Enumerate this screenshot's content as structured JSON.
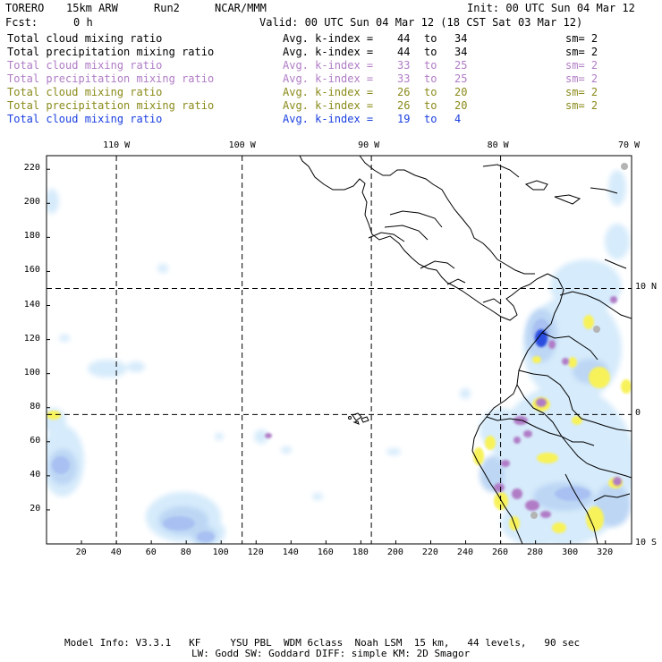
{
  "header": {
    "model": "TORERO",
    "resolution": "15km ARW",
    "run": "Run2",
    "org": "NCAR/MMM",
    "init": "Init: 00 UTC Sun 04 Mar 12",
    "fcst_label": "Fcst:",
    "fcst_value": "0 h",
    "valid": "Valid: 00 UTC Sun 04 Mar 12 (18 CST Sat 03 Mar 12)"
  },
  "legend": [
    {
      "field": "Total cloud mixing ratio",
      "stat": "Avg. k-index =",
      "from": "44",
      "to_word": "to",
      "to": "34",
      "sm": "sm= 2",
      "color": "#000000"
    },
    {
      "field": "Total precipitation mixing ratio",
      "stat": "Avg. k-index =",
      "from": "44",
      "to_word": "to",
      "to": "34",
      "sm": "sm= 2",
      "color": "#000000"
    },
    {
      "field": "Total cloud mixing ratio",
      "stat": "Avg. k-index =",
      "from": "33",
      "to_word": "to",
      "to": "25",
      "sm": "sm= 2",
      "color": "#b07cc6"
    },
    {
      "field": "Total precipitation mixing ratio",
      "stat": "Avg. k-index =",
      "from": "33",
      "to_word": "to",
      "to": "25",
      "sm": "sm= 2",
      "color": "#b07cc6"
    },
    {
      "field": "Total cloud mixing ratio",
      "stat": "Avg. k-index =",
      "from": "26",
      "to_word": "to",
      "to": "20",
      "sm": "sm= 2",
      "color": "#8a8a1a"
    },
    {
      "field": "Total precipitation mixing ratio",
      "stat": "Avg. k-index =",
      "from": "26",
      "to_word": "to",
      "to": "20",
      "sm": "sm= 2",
      "color": "#8a8a1a"
    },
    {
      "field": "Total cloud mixing ratio",
      "stat": "Avg. k-index =",
      "from": "19",
      "to_word": "to",
      "to": "4",
      "sm": "",
      "color": "#1a3fe0"
    }
  ],
  "map": {
    "top_lon_labels": [
      "110 W",
      "100 W",
      "90 W",
      "80 W",
      "70 W"
    ],
    "right_lat_labels": [
      "10 N",
      "0",
      "10 S"
    ],
    "x_ticks": [
      "20",
      "40",
      "60",
      "80",
      "100",
      "120",
      "140",
      "160",
      "180",
      "200",
      "220",
      "240",
      "260",
      "280",
      "300",
      "320"
    ],
    "y_ticks": [
      "20",
      "40",
      "60",
      "80",
      "100",
      "120",
      "140",
      "160",
      "180",
      "200",
      "220"
    ],
    "x_range": [
      0,
      335
    ],
    "y_range": [
      0,
      228
    ],
    "lon_lines_grid_x": [
      40,
      112,
      186,
      260
    ],
    "lat_lines_grid_y": [
      150,
      76
    ],
    "colors": {
      "cloud_light": "#d6ebfb",
      "cloud_mid": "#bcd6f4",
      "cloud_dark": "#a9c1f2",
      "cloud_deep": "#2a4ee0",
      "precip_purple": "#b07cc6",
      "precip_yellow": "#f8f25a",
      "gray": "#b4b4b4"
    }
  },
  "footer": {
    "line1": "Model Info: V3.3.1   KF     YSU PBL  WDM 6class  Noah LSM  15 km,   44 levels,   90 sec",
    "line2": "LW: Godd SW: Goddard DIFF: simple KM: 2D Smagor"
  }
}
